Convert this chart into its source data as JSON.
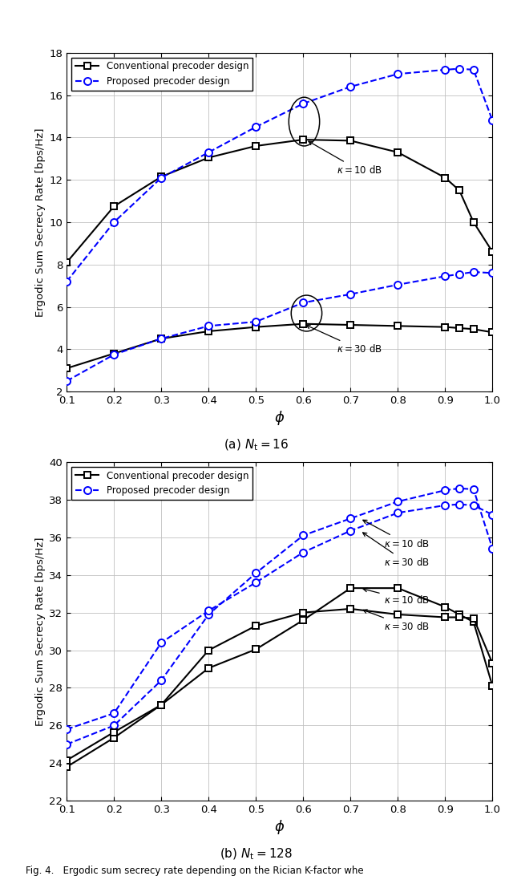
{
  "phi": [
    0.1,
    0.2,
    0.3,
    0.4,
    0.5,
    0.6,
    0.7,
    0.8,
    0.9,
    0.93,
    0.96,
    1.0
  ],
  "plot1_conv_k10": [
    8.1,
    10.75,
    12.15,
    13.05,
    13.6,
    13.9,
    13.85,
    13.3,
    12.1,
    11.5,
    10.0,
    8.6
  ],
  "plot1_prop_k10": [
    7.2,
    10.0,
    12.1,
    13.3,
    14.5,
    15.6,
    16.4,
    17.0,
    17.2,
    17.25,
    17.2,
    14.8
  ],
  "plot1_conv_k30": [
    3.1,
    3.8,
    4.5,
    4.85,
    5.05,
    5.2,
    5.15,
    5.1,
    5.05,
    5.0,
    4.95,
    4.8
  ],
  "plot1_prop_k30": [
    2.5,
    3.75,
    4.5,
    5.1,
    5.3,
    6.2,
    6.6,
    7.05,
    7.45,
    7.55,
    7.65,
    7.6
  ],
  "plot2_conv_k10": [
    23.8,
    25.35,
    27.1,
    29.05,
    30.05,
    31.6,
    33.3,
    33.3,
    32.3,
    31.9,
    31.5,
    28.1
  ],
  "plot2_prop_k10": [
    25.0,
    26.0,
    28.4,
    31.9,
    34.1,
    36.1,
    37.0,
    37.9,
    38.5,
    38.6,
    38.55,
    35.4
  ],
  "plot2_conv_k30": [
    24.15,
    25.65,
    27.1,
    30.0,
    31.3,
    32.0,
    32.2,
    31.9,
    31.75,
    31.75,
    31.7,
    29.3
  ],
  "plot2_prop_k30": [
    25.8,
    26.65,
    30.4,
    32.1,
    33.6,
    35.2,
    36.35,
    37.3,
    37.7,
    37.75,
    37.7,
    37.2
  ],
  "ylabel": "Ergodic Sum Secrecy Rate [bps/Hz]",
  "xlabel": "$\\phi$",
  "legend_conv": "Conventional precoder design",
  "legend_prop": "Proposed precoder design",
  "subtitle1": "(a) $N_{\\mathrm{t}} = 16$",
  "subtitle2": "(b) $N_{\\mathrm{t}} = 128$",
  "ylim1": [
    2,
    18
  ],
  "ylim2": [
    22,
    40
  ],
  "yticks1": [
    2,
    4,
    6,
    8,
    10,
    12,
    14,
    16,
    18
  ],
  "yticks2": [
    22,
    24,
    26,
    28,
    30,
    32,
    34,
    36,
    38,
    40
  ],
  "xticks": [
    0.1,
    0.2,
    0.3,
    0.4,
    0.5,
    0.6,
    0.7,
    0.8,
    0.9,
    1.0
  ],
  "color_conv": "#000000",
  "color_prop": "#0000FF",
  "fig_caption": "Fig. 4.   Ergodic sum secrecy rate depending on the Rician K-factor whe"
}
